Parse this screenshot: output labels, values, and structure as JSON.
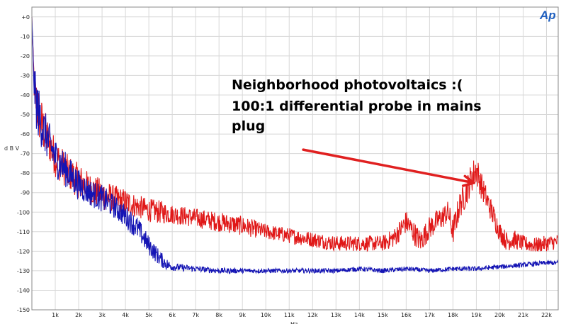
{
  "chart_data": {
    "type": "line",
    "title": "",
    "xlabel": "Hz",
    "ylabel": "d B V",
    "xlim": [
      0,
      22500
    ],
    "ylim": [
      -150,
      5
    ],
    "grid": true,
    "legend": "none",
    "x_ticks": [
      1000,
      2000,
      3000,
      4000,
      5000,
      6000,
      7000,
      8000,
      9000,
      10000,
      11000,
      12000,
      13000,
      14000,
      15000,
      16000,
      17000,
      18000,
      19000,
      20000,
      21000,
      22000
    ],
    "x_tick_labels": [
      "1k",
      "2k",
      "3k",
      "4k",
      "5k",
      "6k",
      "7k",
      "8k",
      "9k",
      "10k",
      "11k",
      "12k",
      "13k",
      "14k",
      "15k",
      "16k",
      "17k",
      "18k",
      "19k",
      "20k",
      "21k",
      "22k"
    ],
    "y_ticks": [
      0,
      -10,
      -20,
      -30,
      -40,
      -50,
      -60,
      -70,
      -80,
      -90,
      -100,
      -110,
      -120,
      -130,
      -140,
      -150
    ],
    "y_tick_labels": [
      "+0",
      "-10",
      "-20",
      "-30",
      "-40",
      "-50",
      "-60",
      "-70",
      "-80",
      "-90",
      "-100",
      "-110",
      "-120",
      "-130",
      "-140",
      "-150"
    ],
    "series": [
      {
        "color": "#e01818",
        "x": [
          0,
          50,
          100,
          200,
          300,
          500,
          800,
          1000,
          1500,
          2000,
          2500,
          3000,
          3500,
          4000,
          4500,
          5000,
          5500,
          6000,
          7000,
          8000,
          9000,
          10000,
          11000,
          12000,
          13000,
          14000,
          15000,
          15500,
          16000,
          16300,
          16600,
          17000,
          17500,
          17800,
          18000,
          18300,
          18500,
          18800,
          19000,
          19200,
          19500,
          19800,
          20000,
          20300,
          20600,
          21000,
          21500,
          22000,
          22500
        ],
        "y": [
          0,
          -20,
          -35,
          -45,
          -50,
          -58,
          -66,
          -72,
          -79,
          -84,
          -88,
          -91,
          -93,
          -95,
          -97,
          -99,
          -100,
          -101,
          -103,
          -105,
          -107,
          -110,
          -112,
          -114,
          -116,
          -116,
          -116,
          -113,
          -105,
          -110,
          -115,
          -108,
          -103,
          -100,
          -110,
          -96,
          -92,
          -82,
          -78,
          -86,
          -95,
          -104,
          -110,
          -115,
          -114,
          -116,
          -117,
          -116,
          -115
        ],
        "noise_amplitude": [
          0,
          4,
          10,
          14,
          14,
          12,
          10,
          10,
          9,
          9,
          8,
          8,
          7,
          7,
          6,
          6,
          6,
          5,
          5,
          5,
          5,
          4,
          4,
          4,
          4,
          4,
          4,
          5,
          6,
          6,
          6,
          6,
          6,
          6,
          7,
          7,
          7,
          8,
          8,
          7,
          6,
          6,
          5,
          5,
          5,
          4,
          4,
          4,
          4
        ]
      },
      {
        "color": "#1414b4",
        "x": [
          0,
          50,
          100,
          200,
          300,
          500,
          800,
          1000,
          1500,
          2000,
          2500,
          3000,
          3500,
          4000,
          4500,
          5000,
          5500,
          5800,
          6000,
          7000,
          8000,
          9000,
          10000,
          11000,
          12000,
          13000,
          14000,
          15000,
          16000,
          17000,
          18000,
          19000,
          20000,
          21000,
          22000,
          22500
        ],
        "y": [
          0,
          -20,
          -35,
          -45,
          -50,
          -58,
          -66,
          -72,
          -79,
          -86,
          -90,
          -93,
          -97,
          -102,
          -108,
          -117,
          -124,
          -127,
          -128,
          -129,
          -130,
          -130,
          -130,
          -130,
          -130,
          -130,
          -129,
          -130,
          -129,
          -130,
          -129,
          -129,
          -128,
          -127,
          -126,
          -126
        ],
        "noise_amplitude": [
          0,
          4,
          10,
          14,
          14,
          12,
          10,
          10,
          9,
          8,
          7,
          7,
          6,
          6,
          6,
          5,
          4,
          3,
          2,
          1.5,
          1.5,
          1.2,
          1.2,
          1.2,
          1.2,
          1.2,
          1.2,
          1.2,
          1.2,
          1.2,
          1.2,
          1.2,
          1.2,
          1.2,
          1.2,
          1.2
        ]
      }
    ]
  },
  "annotation": {
    "lines": [
      "Neighborhood photovoltaics :(",
      "100:1 differential probe in mains",
      "plug"
    ],
    "arrow_from_hz": 11600,
    "arrow_from_db": -68,
    "arrow_to_hz": 18900,
    "arrow_to_db": -85,
    "color": "#e02020"
  },
  "logo": {
    "text": "Ap",
    "color": "#1f5fbf"
  }
}
